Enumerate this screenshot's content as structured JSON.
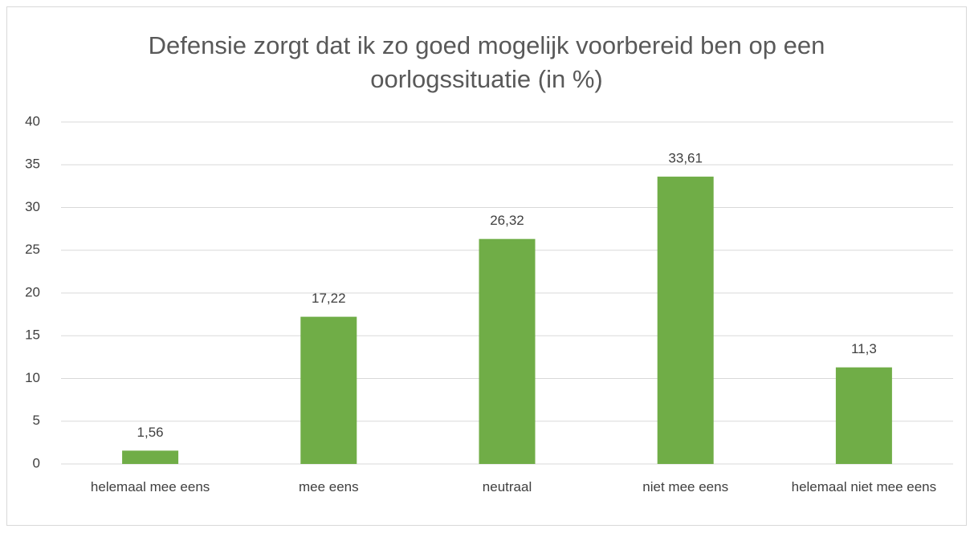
{
  "chart_data": {
    "type": "bar",
    "title": "Defensie zorgt dat ik zo goed mogelijk voorbereid ben op een oorlogssituatie (in %)",
    "categories": [
      "helemaal mee eens",
      "mee eens",
      "neutraal",
      "niet mee eens",
      "helemaal niet mee eens"
    ],
    "values": [
      1.56,
      17.22,
      26.32,
      33.61,
      11.3
    ],
    "value_labels": [
      "1,56",
      "17,22",
      "26,32",
      "33,61",
      "11,3"
    ],
    "color": "#70ad47",
    "ylim": [
      0,
      40
    ],
    "yticks": [
      0,
      5,
      10,
      15,
      20,
      25,
      30,
      35,
      40
    ],
    "grid": true
  }
}
